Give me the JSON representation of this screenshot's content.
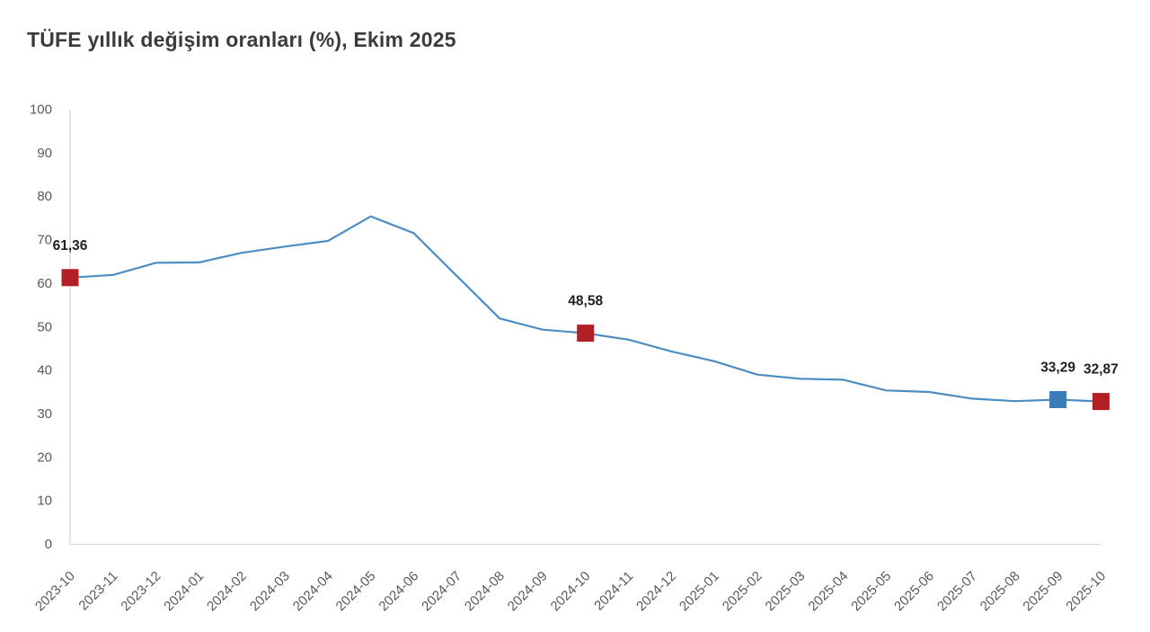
{
  "header": {
    "title": "TÜFE yıllık değişim oranları (%), Ekim 2025"
  },
  "chart_data": {
    "type": "line",
    "title": "TÜFE yıllık değişim oranları (%), Ekim 2025",
    "xlabel": "",
    "ylabel": "",
    "ylim": [
      0,
      100
    ],
    "ytick_step": 10,
    "grid": false,
    "legend_position": "none",
    "categories": [
      "2023-10",
      "2023-11",
      "2023-12",
      "2024-01",
      "2024-02",
      "2024-03",
      "2024-04",
      "2024-05",
      "2024-06",
      "2024-07",
      "2024-08",
      "2024-09",
      "2024-10",
      "2024-11",
      "2024-12",
      "2025-01",
      "2025-02",
      "2025-03",
      "2025-04",
      "2025-05",
      "2025-06",
      "2025-07",
      "2025-08",
      "2025-09",
      "2025-10"
    ],
    "series": [
      {
        "name": "TÜFE yıllık değişim oranı (%)",
        "values": [
          61.36,
          61.98,
          64.77,
          64.86,
          67.07,
          68.5,
          69.8,
          75.45,
          71.6,
          61.78,
          51.97,
          49.38,
          48.58,
          47.09,
          44.38,
          42.12,
          39.05,
          38.1,
          37.86,
          35.41,
          35.05,
          33.52,
          32.95,
          33.29,
          32.87
        ]
      }
    ],
    "highlighted_points": [
      {
        "category": "2023-10",
        "index": 0,
        "value": 61.36,
        "label": "61,36",
        "marker_color": "#b22025"
      },
      {
        "category": "2024-10",
        "index": 12,
        "value": 48.58,
        "label": "48,58",
        "marker_color": "#b22025"
      },
      {
        "category": "2025-09",
        "index": 23,
        "value": 33.29,
        "label": "33,29",
        "marker_color": "#3b7cb8"
      },
      {
        "category": "2025-10",
        "index": 24,
        "value": 32.87,
        "label": "32,87",
        "marker_color": "#b22025"
      }
    ],
    "colors": {
      "line": "#4d8dc4",
      "axis_line": "#d9d9d9",
      "tick_label": "#595959",
      "data_label": "#1f1f1f",
      "title": "#3b3b3b"
    }
  }
}
